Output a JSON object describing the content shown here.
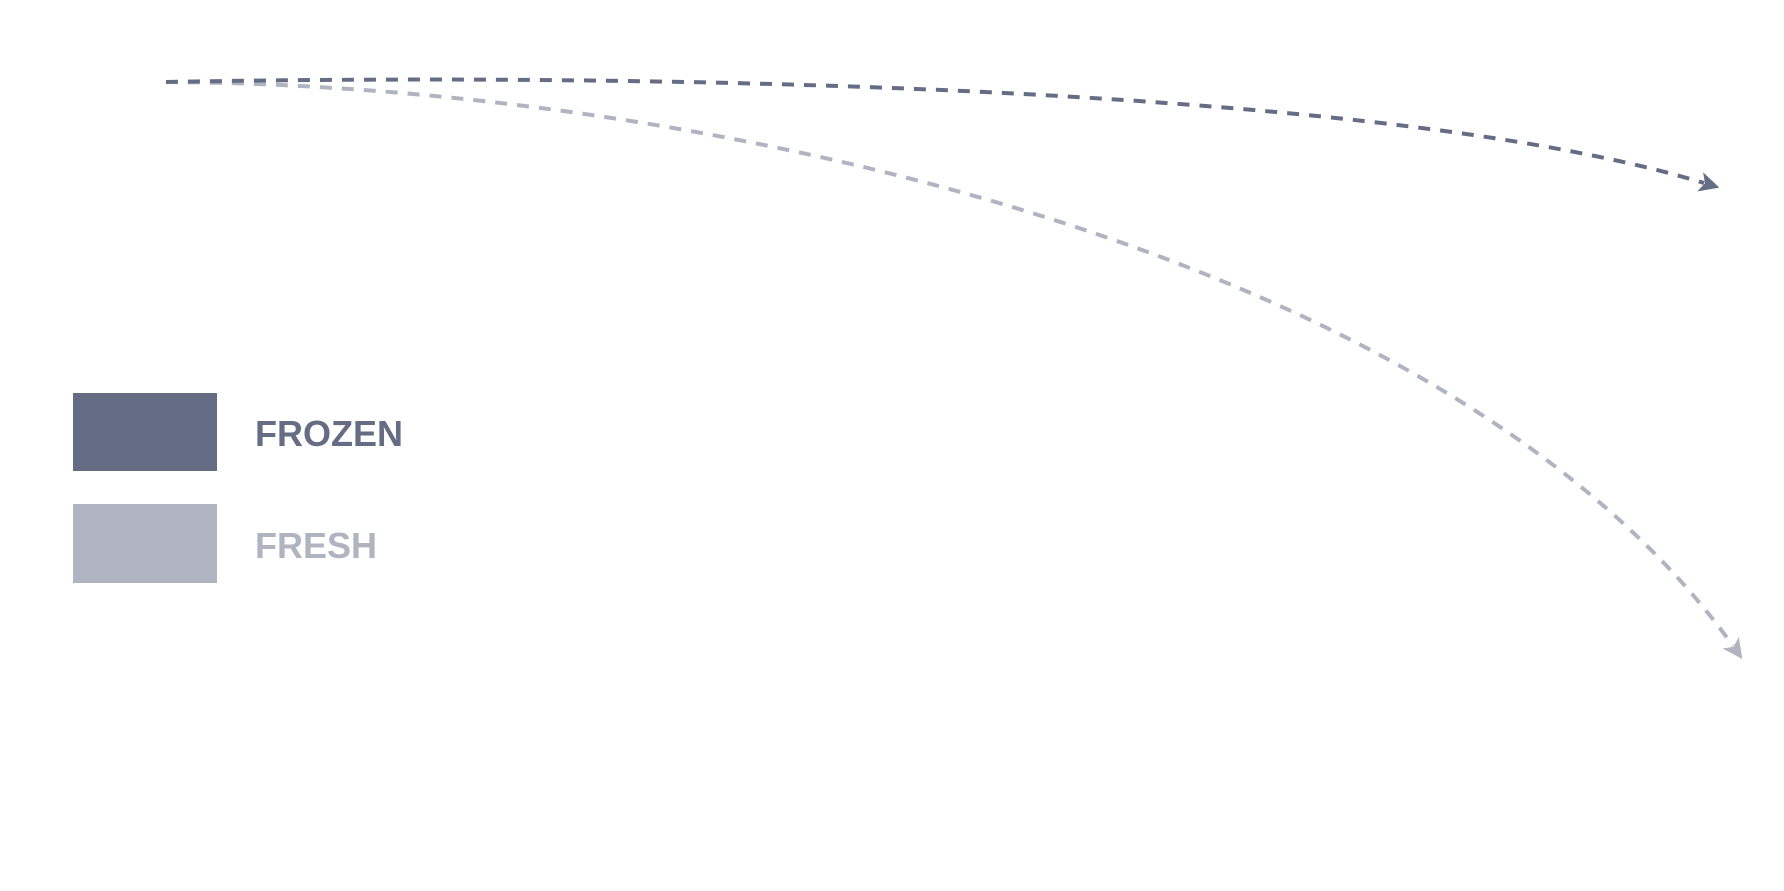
{
  "legend": {
    "items": [
      {
        "label": "FROZEN"
      },
      {
        "label": "FRESH"
      }
    ]
  }
}
